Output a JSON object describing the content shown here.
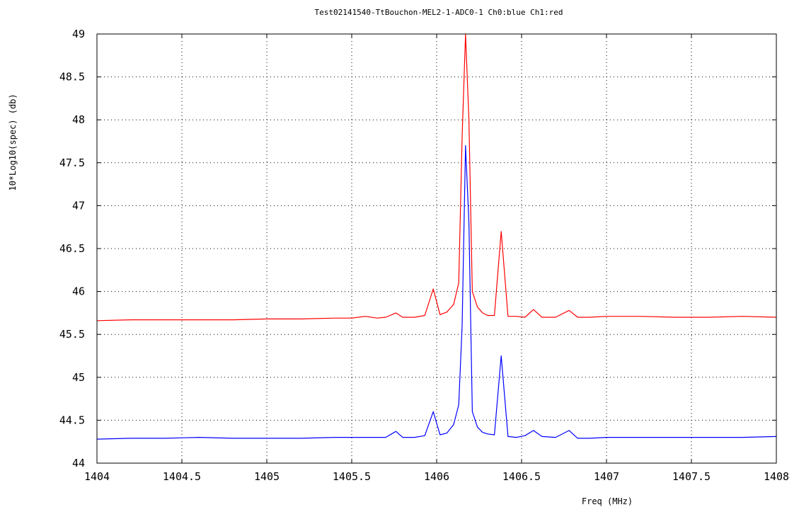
{
  "chart_data": {
    "type": "line",
    "title": "Test02141540-TtBouchon-MEL2-1-ADC0-1 Ch0:blue Ch1:red",
    "xlabel": "Freq (MHz)",
    "ylabel": "10*Log10(spec) (db)",
    "xlim": [
      1404,
      1408
    ],
    "ylim": [
      44,
      49
    ],
    "xticks": [
      "1404",
      "1404.5",
      "1405",
      "1405.5",
      "1406",
      "1406.5",
      "1407",
      "1407.5",
      "1408"
    ],
    "yticks": [
      "44",
      "44.5",
      "45",
      "45.5",
      "46",
      "46.5",
      "47",
      "47.5",
      "48",
      "48.5",
      "49"
    ],
    "grid": true,
    "series": [
      {
        "color": "#0000ff",
        "x": [
          1404.0,
          1404.2,
          1404.4,
          1404.6,
          1404.8,
          1405.0,
          1405.2,
          1405.4,
          1405.5,
          1405.6,
          1405.7,
          1405.76,
          1405.8,
          1405.87,
          1405.93,
          1405.98,
          1406.02,
          1406.06,
          1406.1,
          1406.13,
          1406.15,
          1406.17,
          1406.19,
          1406.21,
          1406.24,
          1406.27,
          1406.3,
          1406.34,
          1406.38,
          1406.42,
          1406.47,
          1406.52,
          1406.57,
          1406.62,
          1406.7,
          1406.78,
          1406.83,
          1406.9,
          1407.0,
          1407.2,
          1407.4,
          1407.6,
          1407.8,
          1408.0
        ],
        "values": [
          44.28,
          44.29,
          44.29,
          44.3,
          44.29,
          44.29,
          44.29,
          44.3,
          44.3,
          44.3,
          44.3,
          44.37,
          44.3,
          44.3,
          44.32,
          44.6,
          44.33,
          44.35,
          44.45,
          44.68,
          45.6,
          47.7,
          46.8,
          44.6,
          44.42,
          44.36,
          44.34,
          44.33,
          45.25,
          44.31,
          44.3,
          44.32,
          44.38,
          44.31,
          44.3,
          44.38,
          44.29,
          44.29,
          44.3,
          44.3,
          44.3,
          44.3,
          44.3,
          44.31
        ]
      },
      {
        "color": "#ff0000",
        "x": [
          1404.0,
          1404.2,
          1404.4,
          1404.6,
          1404.8,
          1405.0,
          1405.2,
          1405.4,
          1405.5,
          1405.58,
          1405.65,
          1405.7,
          1405.76,
          1405.8,
          1405.87,
          1405.93,
          1405.98,
          1406.02,
          1406.06,
          1406.1,
          1406.13,
          1406.15,
          1406.17,
          1406.19,
          1406.21,
          1406.24,
          1406.27,
          1406.3,
          1406.34,
          1406.38,
          1406.42,
          1406.47,
          1406.52,
          1406.57,
          1406.62,
          1406.7,
          1406.78,
          1406.83,
          1406.9,
          1407.0,
          1407.2,
          1407.4,
          1407.6,
          1407.8,
          1408.0
        ],
        "values": [
          45.66,
          45.67,
          45.67,
          45.67,
          45.67,
          45.68,
          45.68,
          45.69,
          45.69,
          45.71,
          45.69,
          45.7,
          45.75,
          45.7,
          45.7,
          45.72,
          46.03,
          45.73,
          45.76,
          45.85,
          46.1,
          47.8,
          49.0,
          48.0,
          46.0,
          45.82,
          45.75,
          45.72,
          45.72,
          46.7,
          45.71,
          45.71,
          45.7,
          45.79,
          45.7,
          45.7,
          45.78,
          45.7,
          45.7,
          45.71,
          45.71,
          45.7,
          45.7,
          45.71,
          45.7
        ]
      }
    ]
  }
}
